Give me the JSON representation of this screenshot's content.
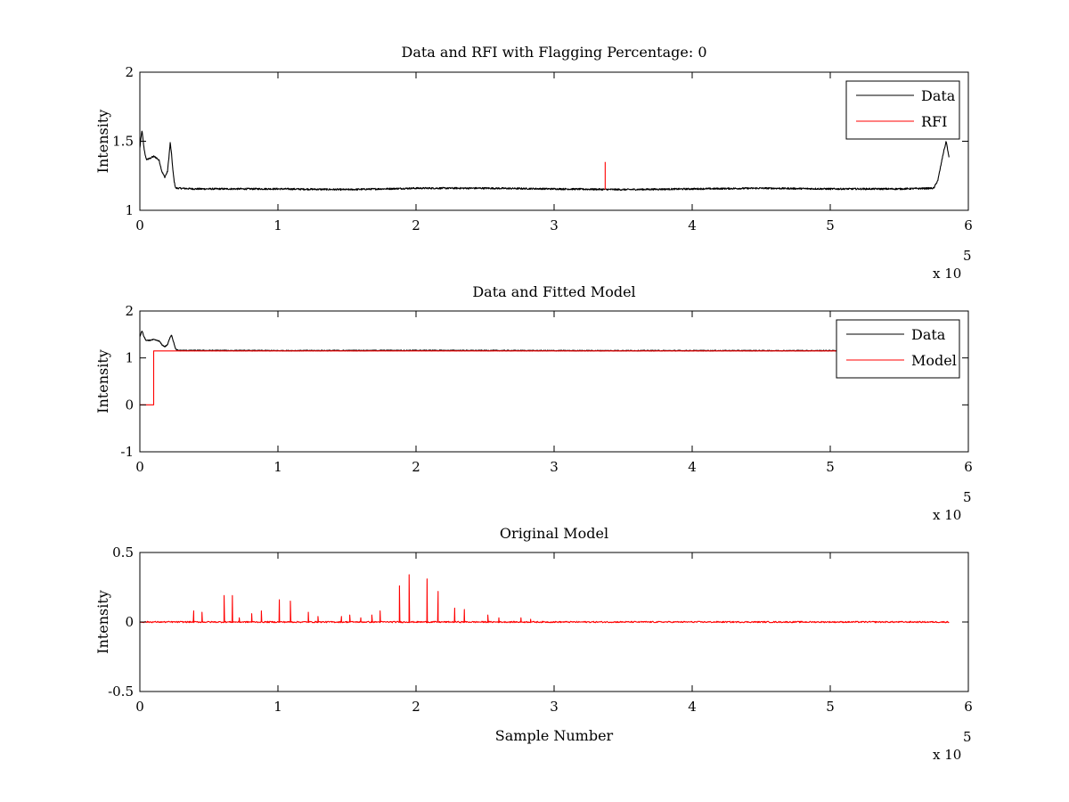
{
  "chart_data": [
    {
      "type": "line",
      "title": "Data and RFI with Flagging Percentage: 0",
      "xlabel": "",
      "ylabel": "Intensity",
      "xlim": [
        0,
        600000
      ],
      "ylim": [
        1,
        2
      ],
      "x_ticks": [
        0,
        1,
        2,
        3,
        4,
        5,
        6
      ],
      "x_tick_labels": [
        "0",
        "1",
        "2",
        "3",
        "4",
        "5",
        "6"
      ],
      "y_ticks": [
        1,
        1.5,
        2
      ],
      "y_tick_labels": [
        "1",
        "1.5",
        "2"
      ],
      "x_multiplier_text": "x 10",
      "x_multiplier_exp": "5",
      "grid": false,
      "legend_position": "top-right",
      "series": [
        {
          "name": "Data",
          "color": "#000000",
          "x": [
            0,
            1500,
            3000,
            4500,
            6000,
            8000,
            10000,
            12000,
            14000,
            16000,
            18000,
            20000,
            21000,
            22000,
            23000,
            24000,
            25000,
            26000,
            27000,
            28000,
            40000,
            100000,
            150000,
            200000,
            250000,
            300000,
            350000,
            400000,
            450000,
            500000,
            550000,
            575000,
            578000,
            580000,
            582000,
            584000,
            586000
          ],
          "y": [
            1.45,
            1.58,
            1.45,
            1.37,
            1.37,
            1.38,
            1.39,
            1.38,
            1.36,
            1.28,
            1.24,
            1.28,
            1.38,
            1.49,
            1.4,
            1.28,
            1.2,
            1.16,
            1.16,
            1.16,
            1.155,
            1.155,
            1.15,
            1.16,
            1.16,
            1.155,
            1.15,
            1.155,
            1.16,
            1.155,
            1.155,
            1.16,
            1.22,
            1.32,
            1.42,
            1.5,
            1.38
          ],
          "noise_amplitude": 0.006
        },
        {
          "name": "RFI",
          "color": "#ff0000",
          "x": [
            337000,
            337000
          ],
          "y": [
            1.15,
            1.35
          ]
        }
      ]
    },
    {
      "type": "line",
      "title": "Data and Fitted Model",
      "xlabel": "",
      "ylabel": "Intensity",
      "xlim": [
        0,
        600000
      ],
      "ylim": [
        -1,
        2
      ],
      "x_ticks": [
        0,
        1,
        2,
        3,
        4,
        5,
        6
      ],
      "x_tick_labels": [
        "0",
        "1",
        "2",
        "3",
        "4",
        "5",
        "6"
      ],
      "y_ticks": [
        -1,
        0,
        1,
        2
      ],
      "y_tick_labels": [
        "-1",
        "0",
        "1",
        "2"
      ],
      "x_multiplier_text": "x 10",
      "x_multiplier_exp": "5",
      "grid": false,
      "legend_position": "top-right",
      "series": [
        {
          "name": "Data",
          "color": "#000000",
          "x": [
            0,
            1500,
            3000,
            4500,
            6000,
            10000,
            14000,
            16000,
            18000,
            20000,
            22000,
            23000,
            24000,
            26000,
            28000,
            100000,
            200000,
            300000,
            400000,
            500000,
            586000
          ],
          "y": [
            1.45,
            1.58,
            1.45,
            1.37,
            1.37,
            1.39,
            1.36,
            1.28,
            1.24,
            1.28,
            1.45,
            1.49,
            1.38,
            1.18,
            1.16,
            1.155,
            1.16,
            1.155,
            1.155,
            1.155,
            1.16
          ],
          "noise_amplitude": 0.01
        },
        {
          "name": "Model",
          "color": "#ff0000",
          "x": [
            0,
            10000,
            10000,
            586000
          ],
          "y": [
            0,
            0,
            1.15,
            1.15
          ]
        }
      ]
    },
    {
      "type": "line",
      "title": "Original Model",
      "xlabel": "Sample Number",
      "ylabel": "Intensity",
      "xlim": [
        0,
        600000
      ],
      "ylim": [
        -0.5,
        0.5
      ],
      "x_ticks": [
        0,
        1,
        2,
        3,
        4,
        5,
        6
      ],
      "x_tick_labels": [
        "0",
        "1",
        "2",
        "3",
        "4",
        "5",
        "6"
      ],
      "y_ticks": [
        -0.5,
        0,
        0.5
      ],
      "y_tick_labels": [
        "-0.5",
        "0",
        "0.5"
      ],
      "x_multiplier_text": "x 10",
      "x_multiplier_exp": "5",
      "grid": false,
      "legend_position": "none",
      "series": [
        {
          "color": "#ff0000",
          "baseline": 0,
          "x_range": [
            0,
            586000
          ],
          "peaks": [
            {
              "x": 39000,
              "y": 0.08
            },
            {
              "x": 45000,
              "y": 0.07
            },
            {
              "x": 61000,
              "y": 0.19
            },
            {
              "x": 67000,
              "y": 0.19
            },
            {
              "x": 72000,
              "y": 0.03
            },
            {
              "x": 81000,
              "y": 0.06
            },
            {
              "x": 88000,
              "y": 0.08
            },
            {
              "x": 101000,
              "y": 0.16
            },
            {
              "x": 109000,
              "y": 0.15
            },
            {
              "x": 122000,
              "y": 0.07
            },
            {
              "x": 129000,
              "y": 0.04
            },
            {
              "x": 146000,
              "y": 0.04
            },
            {
              "x": 152000,
              "y": 0.05
            },
            {
              "x": 160000,
              "y": 0.03
            },
            {
              "x": 168000,
              "y": 0.05
            },
            {
              "x": 174000,
              "y": 0.08
            },
            {
              "x": 188000,
              "y": 0.26
            },
            {
              "x": 195000,
              "y": 0.34
            },
            {
              "x": 208000,
              "y": 0.31
            },
            {
              "x": 216000,
              "y": 0.22
            },
            {
              "x": 228000,
              "y": 0.1
            },
            {
              "x": 235000,
              "y": 0.09
            },
            {
              "x": 252000,
              "y": 0.05
            },
            {
              "x": 260000,
              "y": 0.03
            },
            {
              "x": 276000,
              "y": 0.03
            },
            {
              "x": 283000,
              "y": 0.02
            }
          ],
          "noise_amplitude": 0.005
        }
      ]
    }
  ]
}
